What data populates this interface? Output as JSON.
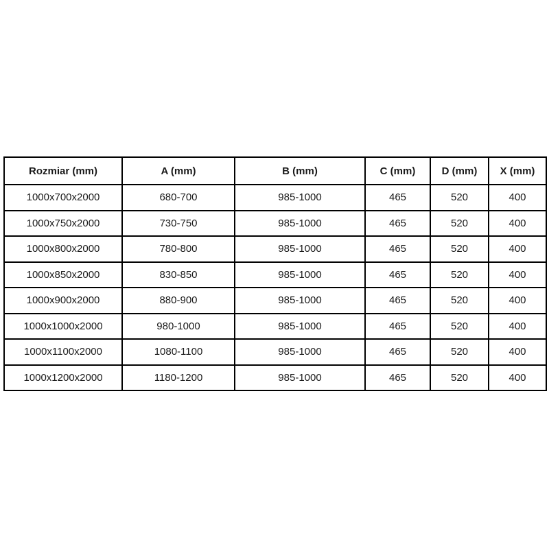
{
  "table": {
    "headers": [
      "Rozmiar (mm)",
      "A (mm)",
      "B (mm)",
      "C (mm)",
      "D (mm)",
      "X (mm)"
    ],
    "rows": [
      [
        "1000x700x2000",
        "680-700",
        "985-1000",
        "465",
        "520",
        "400"
      ],
      [
        "1000x750x2000",
        "730-750",
        "985-1000",
        "465",
        "520",
        "400"
      ],
      [
        "1000x800x2000",
        "780-800",
        "985-1000",
        "465",
        "520",
        "400"
      ],
      [
        "1000x850x2000",
        "830-850",
        "985-1000",
        "465",
        "520",
        "400"
      ],
      [
        "1000x900x2000",
        "880-900",
        "985-1000",
        "465",
        "520",
        "400"
      ],
      [
        "1000x1000x2000",
        "980-1000",
        "985-1000",
        "465",
        "520",
        "400"
      ],
      [
        "1000x1100x2000",
        "1080-1100",
        "985-1000",
        "465",
        "520",
        "400"
      ],
      [
        "1000x1200x2000",
        "1180-1200",
        "985-1000",
        "465",
        "520",
        "400"
      ]
    ],
    "border_color": "#000000",
    "text_color": "#1a1a1a",
    "background_color": "#ffffff"
  }
}
